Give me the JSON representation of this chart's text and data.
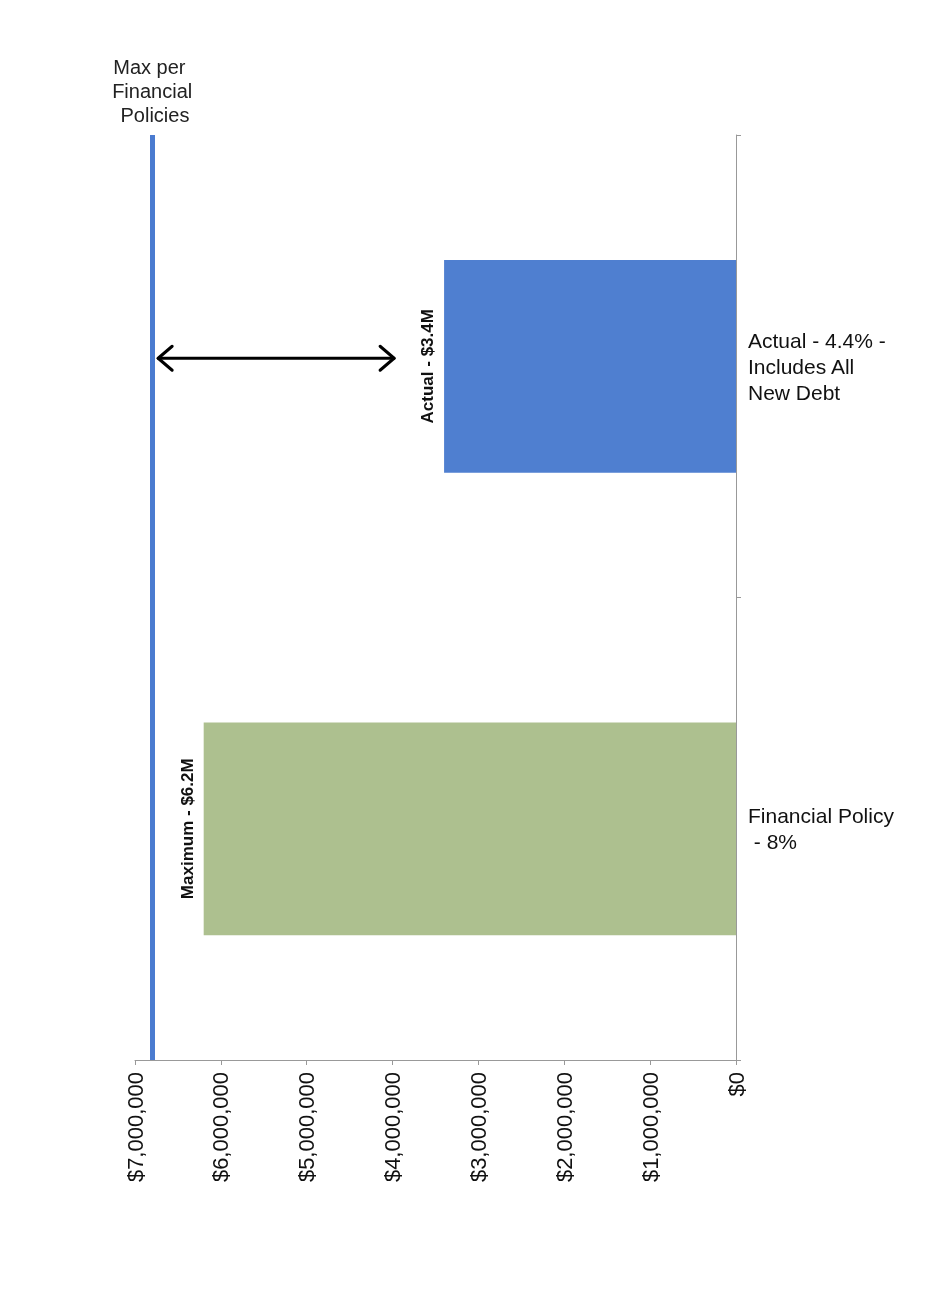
{
  "chart_data": {
    "type": "bar",
    "orientation": "horizontal",
    "categories": [
      "Actual - 4.4% - Includes All New Debt",
      "Financial Policy - 8%"
    ],
    "values": [
      3400000,
      6200000
    ],
    "colors": [
      "#4f7fd0",
      "#adc08f"
    ],
    "annotations": [
      {
        "text": "Actual - $3.4M",
        "x": 3400000,
        "y": "Actual - 4.4% - Includes All New Debt"
      },
      {
        "text": "Maximum - $6.2M",
        "x": 6200000,
        "y": "Financial Policy - 8%"
      }
    ],
    "xlim": [
      7000000,
      0
    ],
    "xticks": [
      {
        "value": 7000000,
        "label": "$7,000,000"
      },
      {
        "value": 6000000,
        "label": "$6,000,000"
      },
      {
        "value": 5000000,
        "label": "$5,000,000"
      },
      {
        "value": 4000000,
        "label": "$4,000,000"
      },
      {
        "value": 3000000,
        "label": "$3,000,000"
      },
      {
        "value": 2000000,
        "label": "$2,000,000"
      },
      {
        "value": 1000000,
        "label": "$1,000,000"
      },
      {
        "value": 0,
        "label": "$0"
      }
    ],
    "ref_lines": [
      {
        "axis": "x",
        "value": 6800000,
        "label": "Max per Financial Policies",
        "color": "#4a7bd0"
      }
    ],
    "grid": false
  }
}
